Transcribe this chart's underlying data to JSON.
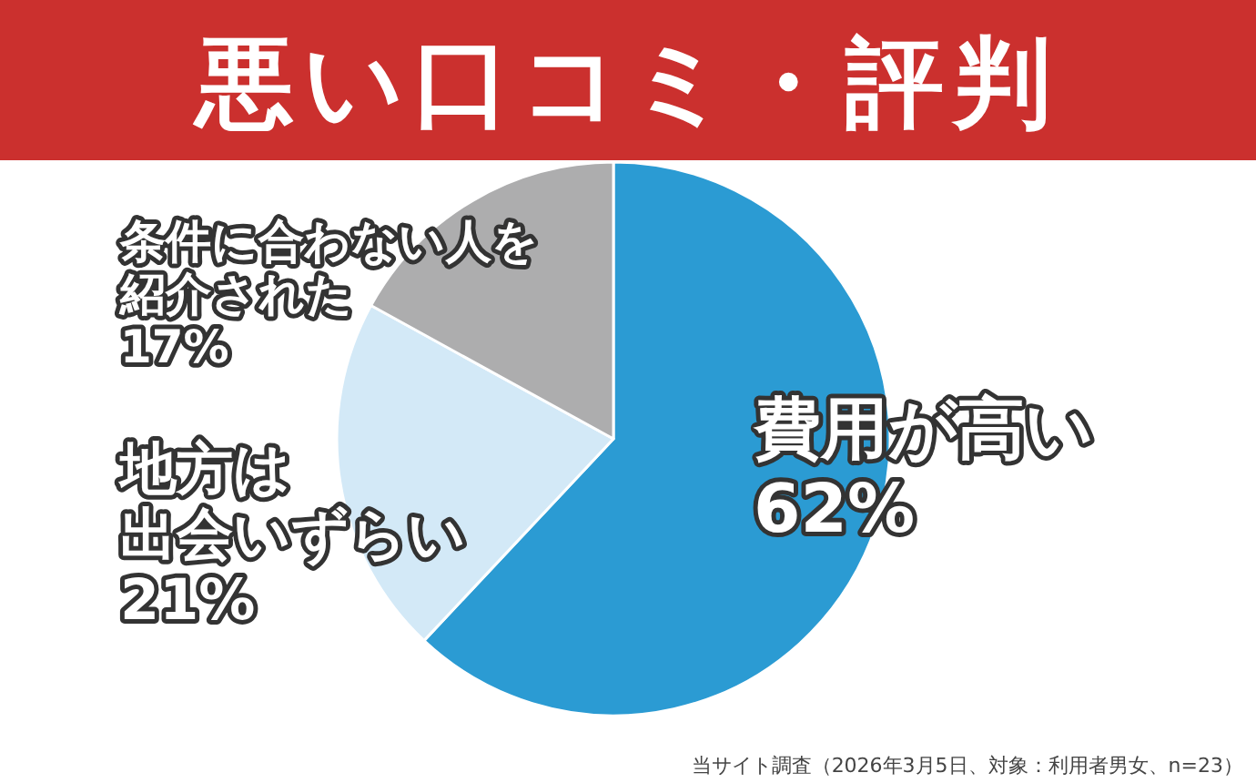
{
  "chart_data": {
    "type": "pie",
    "title": "悪い口コミ・評判",
    "categories": [
      "費用が高い",
      "地方は出会いずらい",
      "条件に合わない人を紹介された"
    ],
    "values": [
      62,
      21,
      17
    ],
    "value_labels": [
      "62%",
      "21%",
      "17%"
    ],
    "colors": [
      "#2b9bd3",
      "#d3e9f7",
      "#adadae"
    ],
    "annotations": [
      "当サイト調査（2026年3月5日、対象：利用者男女、n=23）"
    ]
  }
}
